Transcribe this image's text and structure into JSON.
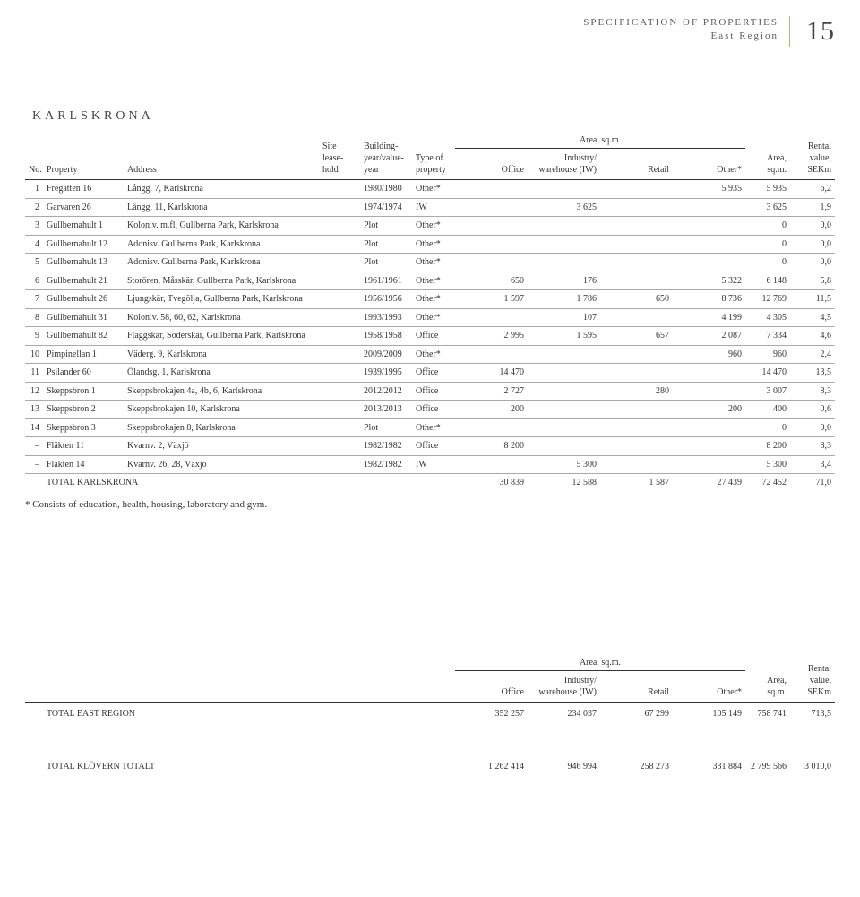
{
  "header": {
    "title_line1": "SPECIFICATION OF PROPERTIES",
    "title_line2": "East Region",
    "page_number": "15"
  },
  "section_title": "KARLSKRONA",
  "columns": {
    "no": "No.",
    "property": "Property",
    "address": "Address",
    "site": "Site lease-hold",
    "year": "Building-year/value-year",
    "type": "Type of property",
    "area_group": "Area, sq.m.",
    "office": "Office",
    "iw": "Industry/ warehouse (IW)",
    "retail": "Retail",
    "other": "Other*",
    "area": "Area, sq.m.",
    "rental": "Rental value, SEKm"
  },
  "rows": [
    {
      "no": "1",
      "prop": "Fregatten 16",
      "addr": "Långg. 7, Karlskrona",
      "site": "",
      "year": "1980/1980",
      "type": "Other*",
      "office": "",
      "iw": "",
      "retail": "",
      "other": "5 935",
      "area": "5 935",
      "rental": "6,2"
    },
    {
      "no": "2",
      "prop": "Garvaren 26",
      "addr": "Långg. 11, Karlskrona",
      "site": "",
      "year": "1974/1974",
      "type": "IW",
      "office": "",
      "iw": "3 625",
      "retail": "",
      "other": "",
      "area": "3 625",
      "rental": "1,9"
    },
    {
      "no": "3",
      "prop": "Gullbernahult 1",
      "addr": "Koloniv. m.fl, Gullberna Park, Karlskrona",
      "site": "",
      "year": "Plot",
      "type": "Other*",
      "office": "",
      "iw": "",
      "retail": "",
      "other": "",
      "area": "0",
      "rental": "0,0"
    },
    {
      "no": "4",
      "prop": "Gullbernahult 12",
      "addr": "Adonisv. Gullberna Park, Karlskrona",
      "site": "",
      "year": "Plot",
      "type": "Other*",
      "office": "",
      "iw": "",
      "retail": "",
      "other": "",
      "area": "0",
      "rental": "0,0"
    },
    {
      "no": "5",
      "prop": "Gullbernahult 13",
      "addr": "Adonisv. Gullberna Park, Karlskrona",
      "site": "",
      "year": "Plot",
      "type": "Other*",
      "office": "",
      "iw": "",
      "retail": "",
      "other": "",
      "area": "0",
      "rental": "0,0"
    },
    {
      "no": "6",
      "prop": "Gullbernahult 21",
      "addr": "Storören, Måsskär, Gullberna Park, Karlskrona",
      "site": "",
      "year": "1961/1961",
      "type": "Other*",
      "office": "650",
      "iw": "176",
      "retail": "",
      "other": "5 322",
      "area": "6 148",
      "rental": "5,8"
    },
    {
      "no": "7",
      "prop": "Gullbernahult 26",
      "addr": "Ljungskär, Tvegölja, Gullberna Park, Karlskrona",
      "site": "",
      "year": "1956/1956",
      "type": "Other*",
      "office": "1 597",
      "iw": "1 786",
      "retail": "650",
      "other": "8 736",
      "area": "12 769",
      "rental": "11,5"
    },
    {
      "no": "8",
      "prop": "Gullbernahult 31",
      "addr": "Koloniv. 58, 60, 62, Karlskrona",
      "site": "",
      "year": "1993/1993",
      "type": "Other*",
      "office": "",
      "iw": "107",
      "retail": "",
      "other": "4 199",
      "area": "4 305",
      "rental": "4,5"
    },
    {
      "no": "9",
      "prop": "Gullbernahult 82",
      "addr": "Flaggskär, Söderskär, Gullberna Park, Karlskrona",
      "site": "",
      "year": "1958/1958",
      "type": "Office",
      "office": "2 995",
      "iw": "1 595",
      "retail": "657",
      "other": "2 087",
      "area": "7 334",
      "rental": "4,6"
    },
    {
      "no": "10",
      "prop": "Pimpinellan 1",
      "addr": "Väderg. 9, Karlskrona",
      "site": "",
      "year": "2009/2009",
      "type": "Other*",
      "office": "",
      "iw": "",
      "retail": "",
      "other": "960",
      "area": "960",
      "rental": "2,4"
    },
    {
      "no": "11",
      "prop": "Psilander 60",
      "addr": "Ölandsg. 1, Karlskrona",
      "site": "",
      "year": "1939/1995",
      "type": "Office",
      "office": "14 470",
      "iw": "",
      "retail": "",
      "other": "",
      "area": "14 470",
      "rental": "13,5"
    },
    {
      "no": "12",
      "prop": "Skeppsbron 1",
      "addr": "Skeppsbrokajen 4a, 4b, 6, Karlskrona",
      "site": "",
      "year": "2012/2012",
      "type": "Office",
      "office": "2 727",
      "iw": "",
      "retail": "280",
      "other": "",
      "area": "3 007",
      "rental": "8,3"
    },
    {
      "no": "13",
      "prop": "Skeppsbron 2",
      "addr": "Skeppsbrokajen 10, Karlskrona",
      "site": "",
      "year": "2013/2013",
      "type": "Office",
      "office": "200",
      "iw": "",
      "retail": "",
      "other": "200",
      "area": "400",
      "rental": "0,6"
    },
    {
      "no": "14",
      "prop": "Skeppsbron 3",
      "addr": "Skeppsbrokajen 8, Karlskrona",
      "site": "",
      "year": "Plot",
      "type": "Other*",
      "office": "",
      "iw": "",
      "retail": "",
      "other": "",
      "area": "0",
      "rental": "0,0"
    },
    {
      "no": "–",
      "prop": "Fläkten 11",
      "addr": "Kvarnv. 2, Växjö",
      "site": "",
      "year": "1982/1982",
      "type": "Office",
      "office": "8 200",
      "iw": "",
      "retail": "",
      "other": "",
      "area": "8 200",
      "rental": "8,3"
    },
    {
      "no": "–",
      "prop": "Fläkten 14",
      "addr": "Kvarnv. 26, 28, Växjö",
      "site": "",
      "year": "1982/1982",
      "type": "IW",
      "office": "",
      "iw": "5 300",
      "retail": "",
      "other": "",
      "area": "5 300",
      "rental": "3,4"
    }
  ],
  "total_row": {
    "label": "TOTAL KARLSKRONA",
    "office": "30 839",
    "iw": "12 588",
    "retail": "1 587",
    "other": "27 439",
    "area": "72 452",
    "rental": "71,0"
  },
  "footnote": "* Consists of education, health, housing, laboratory and gym.",
  "summary": {
    "east": {
      "label": "TOTAL EAST REGION",
      "office": "352 257",
      "iw": "234 037",
      "retail": "67 299",
      "other": "105 149",
      "area": "758 741",
      "rental": "713,5"
    },
    "totalt": {
      "label": "TOTAL KLÖVERN TOTALT",
      "office": "1 262 414",
      "iw": "946 994",
      "retail": "258 273",
      "other": "331 884",
      "area": "2 799 566",
      "rental": "3 010,0"
    }
  }
}
